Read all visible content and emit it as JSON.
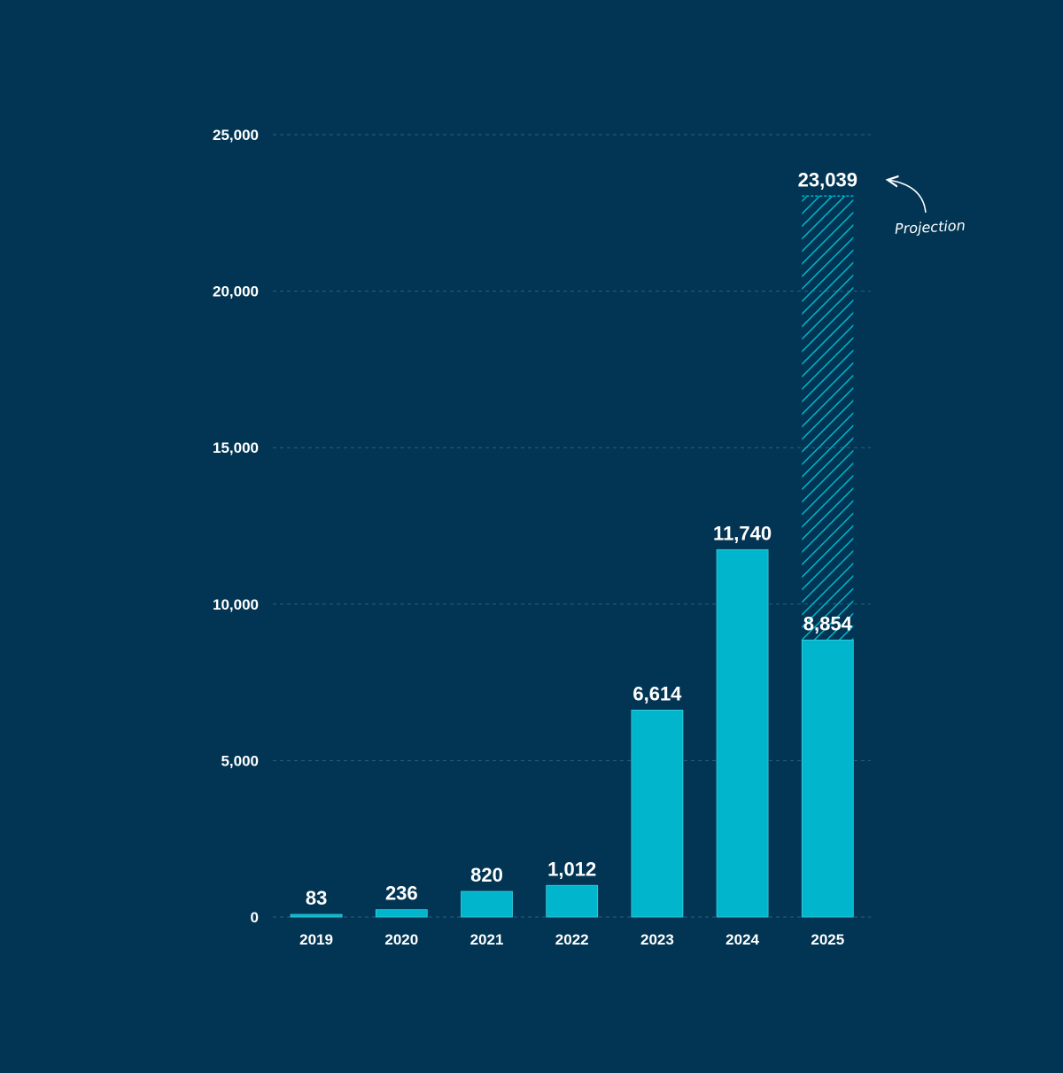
{
  "chart_data": {
    "type": "bar",
    "title": "",
    "xlabel": "",
    "ylabel": "",
    "categories": [
      "2019",
      "2020",
      "2021",
      "2022",
      "2023",
      "2024",
      "2025"
    ],
    "series": [
      {
        "values": [
          83,
          236,
          820,
          1012,
          6614,
          11740,
          8854
        ],
        "value_labels": [
          "83",
          "236",
          "820",
          "1,012",
          "6,614",
          "11,740",
          "8,854"
        ],
        "color": "#00b5cc"
      }
    ],
    "projection": {
      "category": "2025",
      "value": 23039,
      "value_label": "23,039",
      "pattern": "diagonal-hatch",
      "color": "#00b5cc"
    },
    "annotation": {
      "text": "Projection",
      "color": "#ffffff"
    },
    "ylim": [
      0,
      25000
    ],
    "y_ticks": [
      0,
      5000,
      10000,
      15000,
      20000,
      25000
    ],
    "y_tick_labels": [
      "0",
      "5,000",
      "10,000",
      "15,000",
      "20,000",
      "25,000"
    ],
    "grid": true,
    "grid_style": "dashed",
    "legend": "none",
    "colors": {
      "background": "#023553",
      "bar": "#00b5cc",
      "grid": "#2b5f7e",
      "text": "#ffffff"
    }
  }
}
